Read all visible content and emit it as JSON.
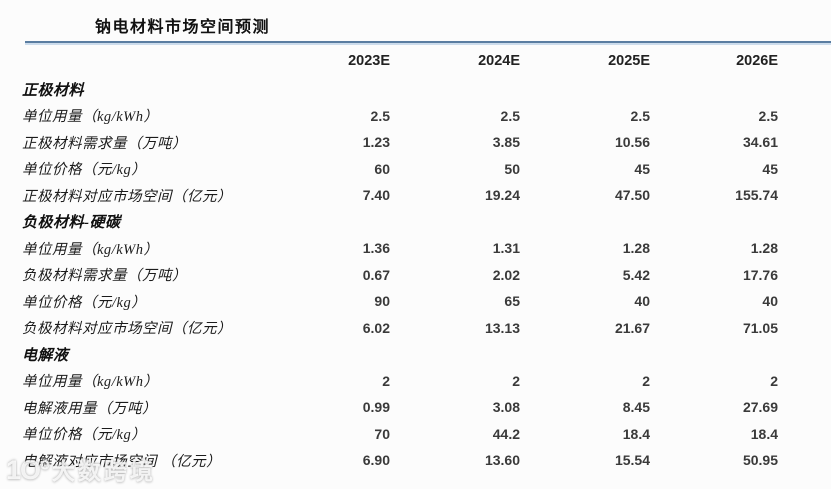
{
  "page": {
    "title": "钠电材料市场空间预测",
    "watermark": {
      "logo_glyph": "1Oº",
      "text": "大数跨境"
    },
    "colors": {
      "rule_dark": "#5a7da1",
      "rule_light": "#ccdcec",
      "background": "#fcfcfc",
      "text": "#1d1d1d",
      "number": "#3a3a3a"
    }
  },
  "table": {
    "columns": [
      "2023E",
      "2024E",
      "2025E",
      "2026E"
    ],
    "sections": [
      {
        "header": "正极材料",
        "rows": [
          {
            "label": "单位用量（kg/kWh）",
            "values": [
              "2.5",
              "2.5",
              "2.5",
              "2.5"
            ]
          },
          {
            "label": "正极材料需求量（万吨）",
            "values": [
              "1.23",
              "3.85",
              "10.56",
              "34.61"
            ]
          },
          {
            "label": "单位价格（元/kg）",
            "values": [
              "60",
              "50",
              "45",
              "45"
            ]
          },
          {
            "label": "正极材料对应市场空间（亿元）",
            "values": [
              "7.40",
              "19.24",
              "47.50",
              "155.74"
            ]
          }
        ]
      },
      {
        "header": "负极材料-硬碳",
        "rows": [
          {
            "label": "单位用量（kg/kWh）",
            "values": [
              "1.36",
              "1.31",
              "1.28",
              "1.28"
            ]
          },
          {
            "label": "负极材料需求量（万吨）",
            "values": [
              "0.67",
              "2.02",
              "5.42",
              "17.76"
            ]
          },
          {
            "label": "单位价格（元/kg）",
            "values": [
              "90",
              "65",
              "40",
              "40"
            ]
          },
          {
            "label": "负极材料对应市场空间（亿元）",
            "values": [
              "6.02",
              "13.13",
              "21.67",
              "71.05"
            ]
          }
        ]
      },
      {
        "header": "电解液",
        "rows": [
          {
            "label": "单位用量（kg/kWh）",
            "values": [
              "2",
              "2",
              "2",
              "2"
            ]
          },
          {
            "label": "电解液用量（万吨）",
            "values": [
              "0.99",
              "3.08",
              "8.45",
              "27.69"
            ]
          },
          {
            "label": "单位价格（元/kg）",
            "values": [
              "70",
              "44.2",
              "18.4",
              "18.4"
            ]
          },
          {
            "label": "电解液对应市场空间 （亿元）",
            "values": [
              "6.90",
              "13.60",
              "15.54",
              "50.95"
            ]
          }
        ]
      }
    ]
  }
}
